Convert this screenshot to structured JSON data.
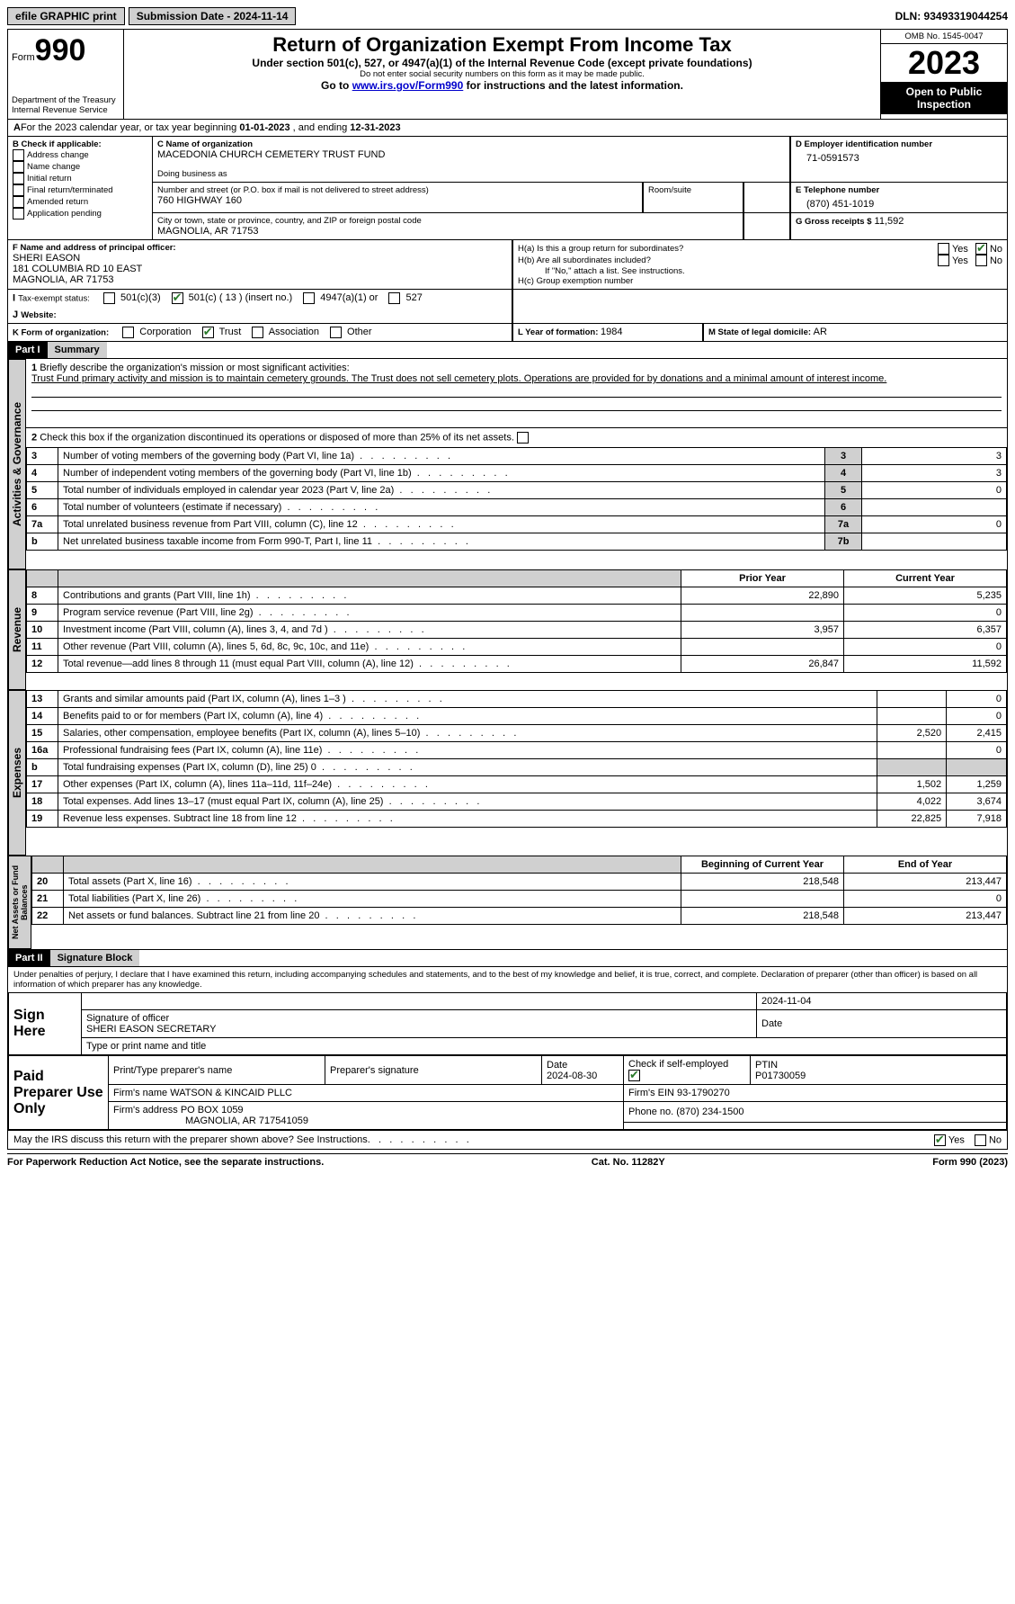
{
  "topbar": {
    "efile": "efile GRAPHIC print",
    "submission_label": "Submission Date - 2024-11-14",
    "dln": "DLN: 93493319044254"
  },
  "header": {
    "form_word": "Form",
    "form_no": "990",
    "dept": "Department of the Treasury",
    "irs": "Internal Revenue Service",
    "title": "Return of Organization Exempt From Income Tax",
    "subtitle": "Under section 501(c), 527, or 4947(a)(1) of the Internal Revenue Code (except private foundations)",
    "ssn_note": "Do not enter social security numbers on this form as it may be made public.",
    "goto_pre": "Go to ",
    "goto_link": "www.irs.gov/Form990",
    "goto_post": " for instructions and the latest information.",
    "omb": "OMB No. 1545-0047",
    "year": "2023",
    "open": "Open to Public Inspection"
  },
  "sectionA": {
    "text_pre": "For the 2023 calendar year, or tax year beginning ",
    "begin": "01-01-2023",
    "mid": " , and ending ",
    "end": "12-31-2023"
  },
  "boxB": {
    "label": "B Check if applicable:",
    "items": [
      "Address change",
      "Name change",
      "Initial return",
      "Final return/terminated",
      "Amended return",
      "Application pending"
    ]
  },
  "boxC": {
    "name_label": "C Name of organization",
    "name": "MACEDONIA CHURCH CEMETERY TRUST FUND",
    "dba_label": "Doing business as",
    "street_label": "Number and street (or P.O. box if mail is not delivered to street address)",
    "street": "760 HIGHWAY 160",
    "room_label": "Room/suite",
    "city_label": "City or town, state or province, country, and ZIP or foreign postal code",
    "city": "MAGNOLIA, AR  71753"
  },
  "boxD": {
    "label": "D Employer identification number",
    "value": "71-0591573"
  },
  "boxE": {
    "label": "E Telephone number",
    "value": "(870) 451-1019"
  },
  "boxG": {
    "label": "G Gross receipts $",
    "value": "11,592"
  },
  "boxF": {
    "label": "F  Name and address of principal officer:",
    "line1": "SHERI EASON",
    "line2": "181 COLUMBIA RD 10 EAST",
    "line3": "MAGNOLIA, AR  71753"
  },
  "boxH": {
    "a_label": "H(a)  Is this a group return for subordinates?",
    "b_label": "H(b)  Are all subordinates included?",
    "b_note": "If \"No,\" attach a list. See instructions.",
    "c_label": "H(c)  Group exemption number  ",
    "yes": "Yes",
    "no": "No"
  },
  "boxI": {
    "label": "Tax-exempt status:",
    "opts": [
      "501(c)(3)",
      "501(c) ( 13 ) (insert no.)",
      "4947(a)(1) or",
      "527"
    ],
    "checked_index": 1
  },
  "boxJ": {
    "label": "Website: "
  },
  "boxK": {
    "label": "K Form of organization:",
    "opts": [
      "Corporation",
      "Trust",
      "Association",
      "Other"
    ],
    "checked_index": 1
  },
  "boxL": {
    "label": "L Year of formation: ",
    "value": "1984"
  },
  "boxM": {
    "label": "M State of legal domicile: ",
    "value": "AR"
  },
  "part1": {
    "hdr": "Part I",
    "title": "Summary",
    "tabs": {
      "gov": "Activities & Governance",
      "rev": "Revenue",
      "exp": "Expenses",
      "net": "Net Assets or Fund Balances"
    },
    "q1_label": "Briefly describe the organization's mission or most significant activities:",
    "q1_text": "Trust Fund primary activity and mission is to maintain cemetery grounds. The Trust does not sell cemetery plots. Operations are provided for by donations and a minimal amount of interest income.",
    "q2": "Check this box        if the organization discontinued its operations or disposed of more than 25% of its net assets.",
    "gov_rows": [
      {
        "n": "3",
        "d": "Number of voting members of the governing body (Part VI, line 1a)",
        "box": "3",
        "v": "3"
      },
      {
        "n": "4",
        "d": "Number of independent voting members of the governing body (Part VI, line 1b)",
        "box": "4",
        "v": "3"
      },
      {
        "n": "5",
        "d": "Total number of individuals employed in calendar year 2023 (Part V, line 2a)",
        "box": "5",
        "v": "0"
      },
      {
        "n": "6",
        "d": "Total number of volunteers (estimate if necessary)",
        "box": "6",
        "v": ""
      },
      {
        "n": "7a",
        "d": "Total unrelated business revenue from Part VIII, column (C), line 12",
        "box": "7a",
        "v": "0"
      },
      {
        "n": "b",
        "d": "Net unrelated business taxable income from Form 990-T, Part I, line 11",
        "box": "7b",
        "v": ""
      }
    ],
    "col_prior": "Prior Year",
    "col_current": "Current Year",
    "rev_rows": [
      {
        "n": "8",
        "d": "Contributions and grants (Part VIII, line 1h)",
        "p": "22,890",
        "c": "5,235"
      },
      {
        "n": "9",
        "d": "Program service revenue (Part VIII, line 2g)",
        "p": "",
        "c": "0"
      },
      {
        "n": "10",
        "d": "Investment income (Part VIII, column (A), lines 3, 4, and 7d )",
        "p": "3,957",
        "c": "6,357"
      },
      {
        "n": "11",
        "d": "Other revenue (Part VIII, column (A), lines 5, 6d, 8c, 9c, 10c, and 11e)",
        "p": "",
        "c": "0"
      },
      {
        "n": "12",
        "d": "Total revenue—add lines 8 through 11 (must equal Part VIII, column (A), line 12)",
        "p": "26,847",
        "c": "11,592"
      }
    ],
    "exp_rows": [
      {
        "n": "13",
        "d": "Grants and similar amounts paid (Part IX, column (A), lines 1–3 )",
        "p": "",
        "c": "0"
      },
      {
        "n": "14",
        "d": "Benefits paid to or for members (Part IX, column (A), line 4)",
        "p": "",
        "c": "0"
      },
      {
        "n": "15",
        "d": "Salaries, other compensation, employee benefits (Part IX, column (A), lines 5–10)",
        "p": "2,520",
        "c": "2,415"
      },
      {
        "n": "16a",
        "d": "Professional fundraising fees (Part IX, column (A), line 11e)",
        "p": "",
        "c": "0"
      },
      {
        "n": "b",
        "d": "Total fundraising expenses (Part IX, column (D), line 25) 0",
        "p": "shade",
        "c": "shade"
      },
      {
        "n": "17",
        "d": "Other expenses (Part IX, column (A), lines 11a–11d, 11f–24e)",
        "p": "1,502",
        "c": "1,259"
      },
      {
        "n": "18",
        "d": "Total expenses. Add lines 13–17 (must equal Part IX, column (A), line 25)",
        "p": "4,022",
        "c": "3,674"
      },
      {
        "n": "19",
        "d": "Revenue less expenses. Subtract line 18 from line 12",
        "p": "22,825",
        "c": "7,918"
      }
    ],
    "col_begin": "Beginning of Current Year",
    "col_end": "End of Year",
    "net_rows": [
      {
        "n": "20",
        "d": "Total assets (Part X, line 16)",
        "p": "218,548",
        "c": "213,447"
      },
      {
        "n": "21",
        "d": "Total liabilities (Part X, line 26)",
        "p": "",
        "c": "0"
      },
      {
        "n": "22",
        "d": "Net assets or fund balances. Subtract line 21 from line 20",
        "p": "218,548",
        "c": "213,447"
      }
    ]
  },
  "part2": {
    "hdr": "Part II",
    "title": "Signature Block",
    "decl": "Under penalties of perjury, I declare that I have examined this return, including accompanying schedules and statements, and to the best of my knowledge and belief, it is true, correct, and complete. Declaration of preparer (other than officer) is based on all information of which preparer has any knowledge.",
    "sign_here": "Sign Here",
    "sig_officer": "Signature of officer",
    "officer_name": "SHERI EASON  SECRETARY",
    "type_name": "Type or print name and title",
    "date_label": "Date",
    "sig_date": "2024-11-04",
    "paid": "Paid Preparer Use Only",
    "prep_name_label": "Print/Type preparer's name",
    "prep_sig_label": "Preparer's signature",
    "prep_date": "2024-08-30",
    "check_if": "Check          if self-employed",
    "ptin_label": "PTIN",
    "ptin": "P01730059",
    "firm_name_label": "Firm's name   ",
    "firm_name": "WATSON & KINCAID PLLC",
    "firm_ein_label": "Firm's EIN  ",
    "firm_ein": "93-1790270",
    "firm_addr_label": "Firm's address ",
    "firm_addr1": "PO BOX 1059",
    "firm_addr2": "MAGNOLIA, AR  717541059",
    "phone_label": "Phone no. ",
    "phone": "(870) 234-1500",
    "discuss": "May the IRS discuss this return with the preparer shown above? See Instructions.",
    "yes": "Yes",
    "no": "No"
  },
  "footer": {
    "left": "For Paperwork Reduction Act Notice, see the separate instructions.",
    "mid": "Cat. No. 11282Y",
    "right": "Form 990 (2023)"
  }
}
